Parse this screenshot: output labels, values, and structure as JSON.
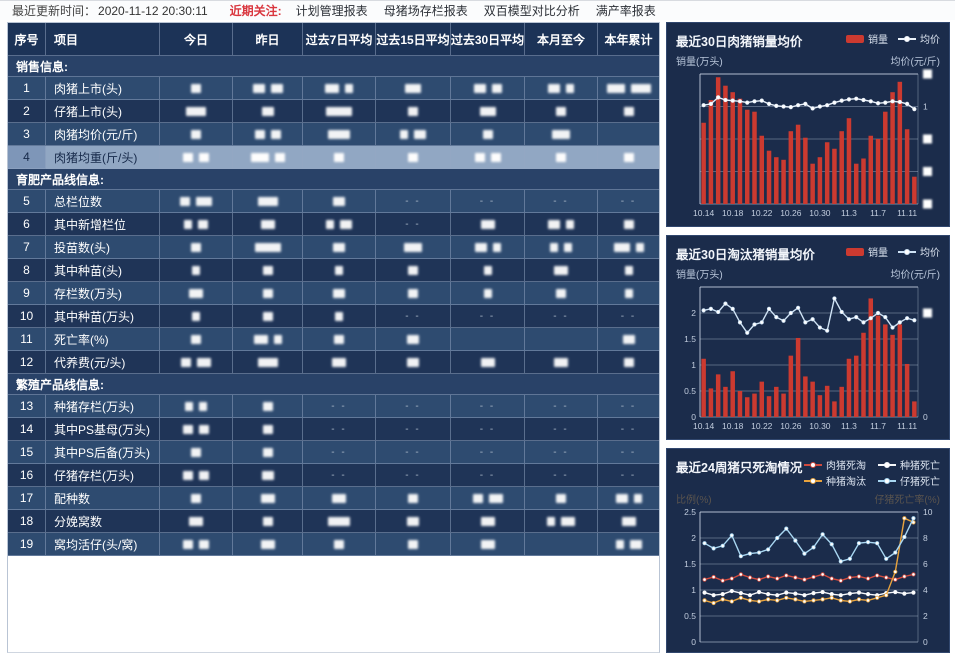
{
  "topbar": {
    "update_label": "最近更新时间：",
    "update_time": "2020-11-12 20:30:11",
    "focus_label": "近期关注:",
    "menu": [
      "计划管理报表",
      "母猪场存栏报表",
      "双百模型对比分析",
      "满产率报表"
    ]
  },
  "table": {
    "columns": [
      "序号",
      "项目",
      "今日",
      "昨日",
      "过去7日平均",
      "过去15日平均",
      "过去30日平均",
      "本月至今",
      "本年累计"
    ],
    "dash_marker": "- -",
    "note": "data cells are redacted: bNN = blurred white block NN px wide, dash = '- -', empty = blank",
    "sections": [
      {
        "title": "销售信息:",
        "rows": [
          {
            "no": "1",
            "name": "肉猪上市(头)",
            "hl": false,
            "cells": [
              "b10",
              "b12 b12",
              "b14 b8",
              "b16",
              "b12 b10",
              "b12 b8",
              "b18 b20"
            ]
          },
          {
            "no": "2",
            "name": "仔猪上市(头)",
            "hl": false,
            "cells": [
              "b20",
              "b12",
              "b26",
              "b10",
              "b16",
              "b10",
              "b10"
            ]
          },
          {
            "no": "3",
            "name": "肉猪均价(元/斤)",
            "hl": false,
            "cells": [
              "b10",
              "b10 b10",
              "b22",
              "b8 b12",
              "b10",
              "b18",
              ""
            ]
          },
          {
            "no": "4",
            "name": "肉猪均重(斤/头)",
            "hl": true,
            "cells": [
              "b10 b10",
              "b18 b10",
              "b10",
              "b10",
              "b10 b10",
              "b10",
              "b10"
            ]
          }
        ]
      },
      {
        "title": "育肥产品线信息:",
        "rows": [
          {
            "no": "5",
            "name": "总栏位数",
            "hl": false,
            "cells": [
              "b10 b16",
              "b20",
              "b12",
              "dash",
              "dash",
              "dash",
              "dash"
            ]
          },
          {
            "no": "6",
            "name": "其中新增栏位",
            "hl": false,
            "cells": [
              "b8 b10",
              "b14",
              "b8 b12",
              "dash",
              "b14",
              "b12 b8",
              "b10"
            ]
          },
          {
            "no": "7",
            "name": "投苗数(头)",
            "hl": false,
            "cells": [
              "b10",
              "b26",
              "b12",
              "b18",
              "b12 b8",
              "b8 b8",
              "b16 b8"
            ]
          },
          {
            "no": "8",
            "name": "其中种苗(头)",
            "hl": false,
            "cells": [
              "b8",
              "b10",
              "b8",
              "b10",
              "b8",
              "b14",
              "b8"
            ]
          },
          {
            "no": "9",
            "name": "存栏数(万头)",
            "hl": false,
            "cells": [
              "b14",
              "b10",
              "b12",
              "b10",
              "b8",
              "b10",
              "b8"
            ]
          },
          {
            "no": "10",
            "name": "其中种苗(万头)",
            "hl": false,
            "cells": [
              "b8",
              "b10",
              "b8",
              "dash",
              "dash",
              "dash",
              "dash"
            ]
          },
          {
            "no": "11",
            "name": "死亡率(%)",
            "hl": false,
            "cells": [
              "b10",
              "b14 b8",
              "b10",
              "b12",
              "",
              "",
              "b12"
            ]
          },
          {
            "no": "12",
            "name": "代养费(元/头)",
            "hl": false,
            "cells": [
              "b10 b14",
              "b20",
              "b14",
              "b12",
              "b14",
              "b14",
              "b10"
            ]
          }
        ]
      },
      {
        "title": "繁殖产品线信息:",
        "rows": [
          {
            "no": "13",
            "name": "种猪存栏(万头)",
            "hl": false,
            "cells": [
              "b8 b8",
              "b10",
              "dash",
              "dash",
              "dash",
              "dash",
              "dash"
            ]
          },
          {
            "no": "14",
            "name": "其中PS基母(万头)",
            "hl": false,
            "cells": [
              "b10 b10",
              "b10",
              "dash",
              "dash",
              "dash",
              "dash",
              "dash"
            ]
          },
          {
            "no": "15",
            "name": "其中PS后备(万头)",
            "hl": false,
            "cells": [
              "b10",
              "b10",
              "dash",
              "dash",
              "dash",
              "dash",
              "dash"
            ]
          },
          {
            "no": "16",
            "name": "仔猪存栏(万头)",
            "hl": false,
            "cells": [
              "b10 b10",
              "b12",
              "dash",
              "dash",
              "dash",
              "dash",
              "dash"
            ]
          },
          {
            "no": "17",
            "name": "配种数",
            "hl": false,
            "cells": [
              "b10",
              "b14",
              "b14",
              "b10",
              "b10 b14",
              "b10",
              "b12 b8"
            ]
          },
          {
            "no": "18",
            "name": "分娩窝数",
            "hl": false,
            "cells": [
              "b14",
              "b10",
              "b22",
              "b12",
              "b14",
              "b8 b14",
              "b14"
            ]
          },
          {
            "no": "19",
            "name": "窝均活仔(头/窝)",
            "hl": false,
            "cells": [
              "b10 b10",
              "b14",
              "b10",
              "b10",
              "b14",
              "",
              "b8 b12"
            ]
          }
        ]
      }
    ]
  },
  "chart_data": [
    {
      "type": "bar",
      "title": "最近30日肉猪销量均价",
      "legend": [
        {
          "label": "销量",
          "kind": "bar",
          "color": "#cc3a30"
        },
        {
          "label": "均价",
          "kind": "line",
          "color": "#e9f1fa"
        }
      ],
      "ylabel_left": "销量(万头)",
      "ylabel_right": "均价(元/斤)",
      "faint_axis_labels": false,
      "n": 30,
      "x_ticks": [
        "10.14",
        "10.18",
        "10.22",
        "10.26",
        "10.30",
        "11.3",
        "11.7",
        "11.11"
      ],
      "tick_every": 4,
      "ylim_left": [
        0,
        2
      ],
      "ylim_right": [
        0,
        20
      ],
      "left_ticks": [
        "",
        "",
        "",
        "",
        ""
      ],
      "right_ticks": [
        "#",
        "1",
        "#",
        "#",
        "#"
      ],
      "bars": [
        1.25,
        1.6,
        1.95,
        1.82,
        1.72,
        1.62,
        1.45,
        1.42,
        1.05,
        0.82,
        0.72,
        0.68,
        1.12,
        1.22,
        1.02,
        0.62,
        0.72,
        0.95,
        0.85,
        1.12,
        1.32,
        0.62,
        0.7,
        1.05,
        1.0,
        1.42,
        1.72,
        1.88,
        1.15,
        0.42
      ],
      "line": [
        15.2,
        15.4,
        16.4,
        16.0,
        15.9,
        15.8,
        15.6,
        15.8,
        15.9,
        15.4,
        15.1,
        15.0,
        14.9,
        15.2,
        15.4,
        14.7,
        15.0,
        15.2,
        15.6,
        15.9,
        16.1,
        16.2,
        16.0,
        15.8,
        15.5,
        15.6,
        15.8,
        15.7,
        15.4,
        14.6
      ]
    },
    {
      "type": "bar",
      "title": "最近30日淘汰猪销量均价",
      "legend": [
        {
          "label": "销量",
          "kind": "bar",
          "color": "#cc3a30"
        },
        {
          "label": "均价",
          "kind": "line",
          "color": "#cfe3f5"
        }
      ],
      "ylabel_left": "销量(万头)",
      "ylabel_right": "均价(元/斤)",
      "faint_axis_labels": false,
      "n": 30,
      "x_ticks": [
        "10.14",
        "10.18",
        "10.22",
        "10.26",
        "10.30",
        "11.3",
        "11.7",
        "11.11"
      ],
      "tick_every": 4,
      "ylim_left": [
        0,
        2.5
      ],
      "ylim_right": [
        0,
        2.5
      ],
      "left_ticks": [
        "",
        "2",
        "1.5",
        "1",
        "0.5",
        "0"
      ],
      "right_ticks": [
        "",
        "#",
        "",
        "",
        "",
        "0"
      ],
      "bars": [
        1.12,
        0.55,
        0.82,
        0.58,
        0.88,
        0.5,
        0.38,
        0.45,
        0.68,
        0.4,
        0.58,
        0.45,
        1.18,
        1.52,
        0.78,
        0.68,
        0.42,
        0.6,
        0.3,
        0.58,
        1.12,
        1.18,
        1.62,
        2.28,
        1.95,
        1.78,
        1.58,
        1.78,
        1.02,
        0.3
      ],
      "line": [
        2.05,
        2.08,
        2.02,
        2.18,
        2.08,
        1.82,
        1.62,
        1.78,
        1.82,
        2.08,
        1.92,
        1.85,
        2.0,
        2.1,
        1.82,
        1.88,
        1.72,
        1.66,
        2.28,
        2.02,
        1.88,
        1.92,
        1.82,
        1.9,
        2.0,
        1.92,
        1.72,
        1.82,
        1.9,
        1.86
      ]
    },
    {
      "type": "line",
      "title": "最近24周猪只死淘情况",
      "legend": [
        {
          "label": "肉猪死淘",
          "kind": "line",
          "color": "#d04a3e"
        },
        {
          "label": "种猪死亡",
          "kind": "line",
          "color": "#f5f7fa"
        },
        {
          "label": "种猪淘汰",
          "kind": "line",
          "color": "#e8a33d"
        },
        {
          "label": "仔猪死亡",
          "kind": "line",
          "color": "#a9d7f2"
        }
      ],
      "ylabel_left": "比例(%)",
      "ylabel_right": "仔猪死亡率(%)",
      "faint_axis_labels": true,
      "n": 24,
      "x_ticks": [],
      "tick_every": 4,
      "ylim_left": [
        0,
        2.5
      ],
      "ylim_right": [
        0,
        10
      ],
      "left_ticks": [
        "2.5",
        "2",
        "1.5",
        "1",
        "0.5",
        "0"
      ],
      "right_ticks": [
        "10",
        "8",
        "6",
        "4",
        "2",
        "0"
      ],
      "series": [
        {
          "name": "肉猪死淘",
          "color": "#d04a3e",
          "values": [
            1.2,
            1.25,
            1.18,
            1.22,
            1.3,
            1.24,
            1.2,
            1.26,
            1.22,
            1.28,
            1.24,
            1.2,
            1.25,
            1.3,
            1.22,
            1.18,
            1.24,
            1.26,
            1.22,
            1.28,
            1.24,
            1.2,
            1.26,
            1.3
          ]
        },
        {
          "name": "种猪死亡",
          "color": "#f5f7fa",
          "values": [
            0.95,
            0.9,
            0.92,
            0.98,
            0.94,
            0.9,
            0.96,
            0.92,
            0.9,
            0.95,
            0.93,
            0.9,
            0.94,
            0.96,
            0.92,
            0.9,
            0.93,
            0.95,
            0.92,
            0.9,
            0.94,
            0.96,
            0.93,
            0.95
          ]
        },
        {
          "name": "种猪淘汰",
          "color": "#e8a33d",
          "values": [
            0.8,
            0.75,
            0.82,
            0.78,
            0.85,
            0.8,
            0.78,
            0.82,
            0.8,
            0.85,
            0.82,
            0.78,
            0.8,
            0.82,
            0.85,
            0.8,
            0.78,
            0.82,
            0.8,
            0.85,
            0.9,
            1.35,
            2.38,
            2.3
          ]
        },
        {
          "name": "仔猪死亡",
          "color": "#a9d7f2",
          "values": [
            1.9,
            1.8,
            1.85,
            2.05,
            1.65,
            1.7,
            1.72,
            1.78,
            2.0,
            2.18,
            1.95,
            1.7,
            1.82,
            2.07,
            1.88,
            1.55,
            1.6,
            1.9,
            1.92,
            1.9,
            1.6,
            1.72,
            2.02,
            2.38
          ]
        }
      ]
    }
  ]
}
